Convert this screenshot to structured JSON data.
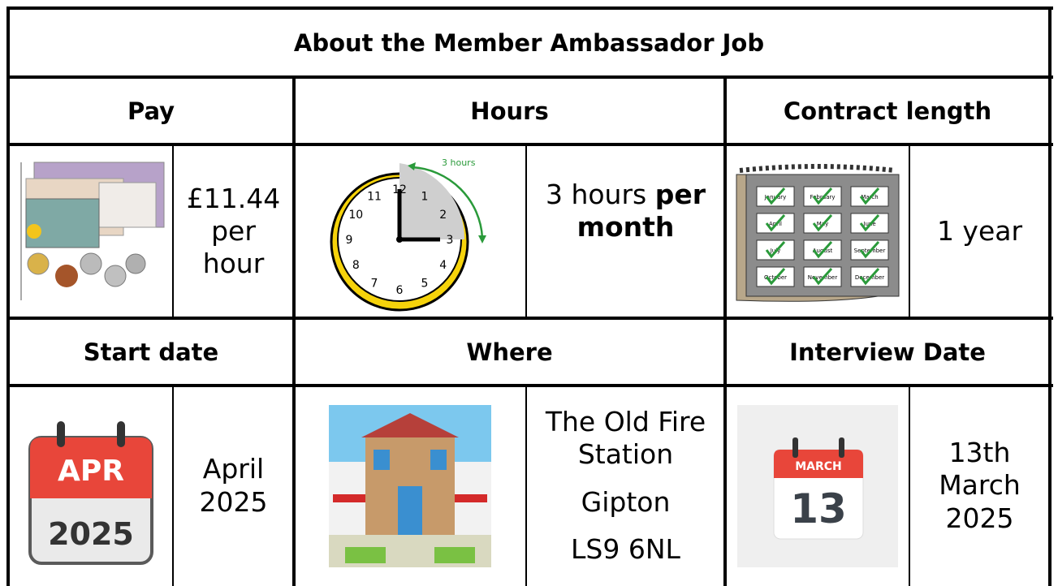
{
  "title": "About the Member Ambassador Job",
  "pay": {
    "heading": "Pay",
    "lines": [
      "£11.44",
      "per",
      "hour"
    ]
  },
  "hours": {
    "heading": "Hours",
    "text": "3 hours",
    "bold": "per month",
    "icon_label": "3 hours",
    "clock_numbers": [
      "12",
      "1",
      "2",
      "3",
      "4",
      "5",
      "6",
      "7",
      "8",
      "9",
      "10",
      "11"
    ]
  },
  "contract": {
    "heading": "Contract length",
    "text": "1 year",
    "months": [
      "January",
      "February",
      "March",
      "April",
      "May",
      "June",
      "July",
      "August",
      "September",
      "October",
      "November",
      "December"
    ]
  },
  "start": {
    "heading": "Start date",
    "lines": [
      "April",
      "2025"
    ],
    "icon_month": "APR",
    "icon_year": "2025"
  },
  "where": {
    "heading": "Where",
    "lines": [
      "The Old Fire Station",
      "Gipton",
      "LS9 6NL"
    ]
  },
  "interview": {
    "heading": "Interview Date",
    "lines": [
      "13th",
      "March",
      "2025"
    ],
    "icon_month": "MARCH",
    "icon_day": "13"
  }
}
